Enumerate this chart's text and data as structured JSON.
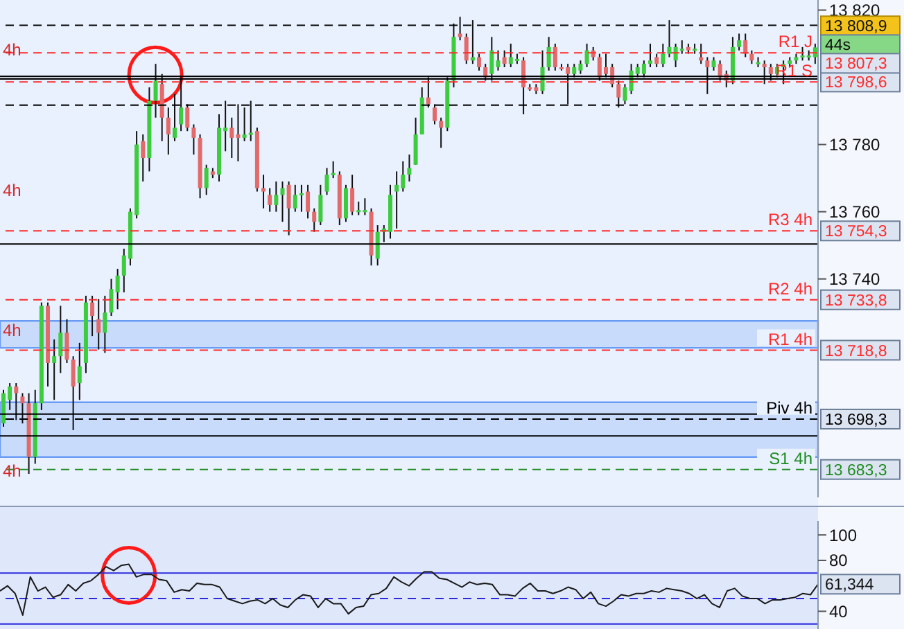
{
  "chart_data": [
    {
      "type": "candlestick",
      "categories": [
        null,
        null,
        null,
        null,
        null,
        null,
        null,
        null,
        null,
        null,
        null,
        null,
        null,
        null,
        null,
        null,
        null,
        null,
        null,
        null,
        null,
        null,
        null,
        null,
        null,
        null,
        null,
        null,
        null,
        null,
        null,
        null,
        null,
        null,
        null,
        null,
        null,
        null,
        null,
        null,
        null,
        null,
        null,
        null,
        null,
        null,
        null,
        null,
        null,
        null,
        null,
        null,
        null,
        null,
        null,
        null,
        null,
        null,
        null,
        null,
        null,
        null,
        null,
        null,
        null,
        null,
        null,
        null,
        null,
        null,
        null,
        null,
        null,
        null,
        null,
        null,
        null,
        null,
        null,
        null,
        null,
        null,
        null,
        null,
        null,
        null,
        null,
        null,
        null,
        null,
        null,
        null,
        null,
        null,
        null,
        null,
        null,
        null,
        null,
        null,
        null,
        null,
        null,
        null,
        null,
        null,
        null,
        null,
        null,
        null,
        null,
        null,
        null,
        null,
        null,
        null,
        null,
        null,
        null,
        null,
        null,
        null,
        null,
        null,
        null,
        null,
        null,
        null,
        null
      ],
      "ohlc": [
        [
          13697,
          13707,
          13696,
          13706
        ],
        [
          13704,
          13709,
          13701,
          13708
        ],
        [
          13708,
          13709,
          13698,
          13706
        ],
        [
          13705,
          13706,
          13697,
          13703
        ],
        [
          13703,
          13706,
          13682,
          13687
        ],
        [
          13687,
          13707,
          13685,
          13703
        ],
        [
          13703,
          13733,
          13701,
          13732
        ],
        [
          13732,
          13733,
          13708,
          13715
        ],
        [
          13715,
          13722,
          13704,
          13717
        ],
        [
          13717,
          13732,
          13712,
          13724
        ],
        [
          13724,
          13728,
          13715,
          13716
        ],
        [
          13716,
          13717,
          13695,
          13708
        ],
        [
          13709,
          13721,
          13704,
          13714
        ],
        [
          13715,
          13735,
          13712,
          13733
        ],
        [
          13733,
          13735,
          13723,
          13729
        ],
        [
          13728,
          13734,
          13719,
          13724
        ],
        [
          13724,
          13735,
          13718,
          13730
        ],
        [
          13730,
          13740,
          13729,
          13737
        ],
        [
          13736,
          13743,
          13731,
          13741
        ],
        [
          13741,
          13749,
          13736,
          13747
        ],
        [
          13746,
          13761,
          13744,
          13760
        ],
        [
          13759,
          13784,
          13758,
          13780
        ],
        [
          13781,
          13783,
          13769,
          13776
        ],
        [
          13776,
          13797,
          13772,
          13793
        ],
        [
          13793,
          13804,
          13788,
          13799
        ],
        [
          13798,
          13801,
          13781,
          13788
        ],
        [
          13788,
          13791,
          13777,
          13783
        ],
        [
          13782,
          13795,
          13781,
          13785
        ],
        [
          13786,
          13800,
          13784,
          13791
        ],
        [
          13791,
          13792,
          13784,
          13785
        ],
        [
          13785,
          13786,
          13777,
          13782
        ],
        [
          13782,
          13783,
          13764,
          13767
        ],
        [
          13767,
          13774,
          13765,
          13773
        ],
        [
          13772,
          13773,
          13770,
          13771
        ],
        [
          13771,
          13789,
          13769,
          13785
        ],
        [
          13784,
          13793,
          13778,
          13785
        ],
        [
          13785,
          13788,
          13776,
          13782
        ],
        [
          13783,
          13792,
          13775,
          13782
        ],
        [
          13782,
          13791,
          13781,
          13783
        ],
        [
          13783,
          13793,
          13781,
          13783.5
        ],
        [
          13784,
          13785,
          13766,
          13767
        ],
        [
          13767,
          13771,
          13761,
          13766
        ],
        [
          13765,
          13767,
          13760,
          13762
        ],
        [
          13762,
          13769,
          13760,
          13765
        ],
        [
          13765,
          13769,
          13757,
          13767
        ],
        [
          13768,
          13769,
          13753,
          13761
        ],
        [
          13761,
          13768,
          13760,
          13765
        ],
        [
          13765,
          13768,
          13760,
          13765.5
        ],
        [
          13766,
          13768,
          13758,
          13760
        ],
        [
          13760,
          13761,
          13754,
          13757
        ],
        [
          13757,
          13768,
          13756,
          13765
        ],
        [
          13766,
          13773,
          13765,
          13771
        ],
        [
          13771,
          13775,
          13770,
          13771.5
        ],
        [
          13771,
          13772,
          13756,
          13758
        ],
        [
          13758,
          13768,
          13757,
          13767
        ],
        [
          13767,
          13771,
          13759,
          13760
        ],
        [
          13760,
          13763,
          13759,
          13760.5
        ],
        [
          13760,
          13764,
          13759,
          13760.5
        ],
        [
          13760,
          13761,
          13744,
          13747
        ],
        [
          13746,
          13756,
          13744,
          13754
        ],
        [
          13754,
          13756,
          13751,
          13755
        ],
        [
          13754,
          13768,
          13752,
          13765
        ],
        [
          13766,
          13772,
          13755,
          13768
        ],
        [
          13767,
          13775,
          13766,
          13771
        ],
        [
          13771,
          13777,
          13769,
          13773
        ],
        [
          13774,
          13788,
          13774,
          13783
        ],
        [
          13783,
          13797,
          13783,
          13794
        ],
        [
          13794,
          13800,
          13791,
          13792
        ],
        [
          13791,
          13792,
          13786,
          13787
        ],
        [
          13787,
          13788,
          13779,
          13785
        ],
        [
          13785,
          13800,
          13784,
          13799
        ],
        [
          13799,
          13816,
          13797,
          13812
        ],
        [
          13813,
          13818,
          13811,
          13812
        ],
        [
          13812,
          13813,
          13804,
          13805
        ],
        [
          13805,
          13817,
          13804,
          13806
        ],
        [
          13806,
          13807,
          13802,
          13803
        ],
        [
          13803,
          13804,
          13799,
          13800
        ],
        [
          13801,
          13812,
          13799,
          13808
        ],
        [
          13803,
          13808,
          13802,
          13805
        ],
        [
          13806,
          13808,
          13803,
          13804
        ],
        [
          13804,
          13810,
          13803,
          13806
        ],
        [
          13805,
          13807,
          13804,
          13805.5
        ],
        [
          13805,
          13806,
          13789,
          13797
        ],
        [
          13797,
          13798,
          13796,
          13796.5
        ],
        [
          13797,
          13798,
          13795,
          13796
        ],
        [
          13796,
          13808,
          13795,
          13803
        ],
        [
          13803,
          13812,
          13802,
          13809
        ],
        [
          13809,
          13810,
          13802,
          13803
        ],
        [
          13803,
          13804,
          13802,
          13802.5
        ],
        [
          13803,
          13804,
          13792,
          13801
        ],
        [
          13801,
          13804,
          13800,
          13803
        ],
        [
          13802,
          13805,
          13801,
          13804
        ],
        [
          13804,
          13810,
          13803,
          13808
        ],
        [
          13808,
          13809,
          13805,
          13806
        ],
        [
          13806,
          13807,
          13799,
          13800
        ],
        [
          13803,
          13807,
          13800,
          13801
        ],
        [
          13803,
          13804,
          13797,
          13798
        ],
        [
          13798,
          13799,
          13791,
          13794
        ],
        [
          13793,
          13798,
          13792,
          13797
        ],
        [
          13796,
          13804,
          13795,
          13802
        ],
        [
          13801,
          13804,
          13800,
          13803
        ],
        [
          13801,
          13805,
          13800,
          13804
        ],
        [
          13804,
          13810,
          13803,
          13805
        ],
        [
          13806,
          13807,
          13803,
          13804
        ],
        [
          13804,
          13810,
          13803,
          13807
        ],
        [
          13807,
          13817,
          13806,
          13809
        ],
        [
          13805,
          13810,
          13803,
          13809
        ],
        [
          13808,
          13811,
          13807,
          13808.5
        ],
        [
          13809,
          13810,
          13807,
          13808
        ],
        [
          13808,
          13810,
          13807,
          13808.5
        ],
        [
          13806,
          13810,
          13804,
          13805
        ],
        [
          13805,
          13806,
          13795,
          13803
        ],
        [
          13803,
          13806,
          13802,
          13805
        ],
        [
          13804,
          13805,
          13799,
          13800
        ],
        [
          13801,
          13802,
          13797,
          13799
        ],
        [
          13799,
          13812,
          13798,
          13809
        ],
        [
          13809,
          13813,
          13808,
          13811
        ],
        [
          13811,
          13813,
          13806,
          13807
        ],
        [
          13807,
          13808,
          13804,
          13805
        ],
        [
          13804,
          13806,
          13803,
          13804.5
        ],
        [
          13804,
          13805,
          13798,
          13803
        ],
        [
          13803,
          13804,
          13799,
          13801
        ],
        [
          13801,
          13804,
          13800,
          13803
        ],
        [
          13803,
          13805,
          13798,
          13804
        ],
        [
          13804,
          13806,
          13803,
          13805
        ],
        [
          13805,
          13807,
          13804,
          13806
        ],
        [
          13806,
          13809,
          13805,
          13806.5
        ],
        [
          13806,
          13808,
          13805,
          13806.5
        ],
        [
          13806,
          13810,
          13804,
          13808.9
        ]
      ],
      "ylim": [
        13675,
        13823
      ],
      "yticks": [
        {
          "value": 13683.3,
          "label": "13 683,3"
        },
        {
          "value": 13698.3,
          "label": "13 698,3"
        },
        {
          "value": 13718.8,
          "label": "13 718,8"
        },
        {
          "value": 13733.8,
          "label": "13 733,8"
        },
        {
          "value": 13740,
          "label": "13 740"
        },
        {
          "value": 13754.3,
          "label": "13 754,3"
        },
        {
          "value": 13760,
          "label": "13 760"
        },
        {
          "value": 13780,
          "label": "13 780"
        },
        {
          "value": 13798.6,
          "label": "13 798,6"
        },
        {
          "value": 13820,
          "label": "13 820"
        }
      ],
      "tick_labels": "y",
      "ref_lines": [
        {
          "axis": "y",
          "value": 13807.3,
          "label": "R1 J",
          "color": "#ff2a2a",
          "line_style": "dashed"
        },
        {
          "axis": "y",
          "value": 13798.6,
          "label": "R1 S",
          "color": "#ff2a2a",
          "line_style": "dashed"
        },
        {
          "axis": "y",
          "value": 13754.3,
          "label": "R3 4h",
          "color": "#ff2a2a",
          "line_style": "dashed"
        },
        {
          "axis": "y",
          "value": 13733.8,
          "label": "R2 4h",
          "color": "#ff2a2a",
          "line_style": "dashed"
        },
        {
          "axis": "y",
          "value": 13718.8,
          "label": "R1 4h",
          "color": "#ff2a2a",
          "line_style": "dashed"
        },
        {
          "axis": "y",
          "value": 13698.3,
          "label": "Piv 4h",
          "color": "#000000",
          "line_style": "dashed"
        },
        {
          "axis": "y",
          "value": 13683.3,
          "label": "S1 4h",
          "color": "#1e8c1e",
          "line_style": "dashed"
        },
        {
          "axis": "y",
          "value": 13815.5,
          "color": "#000000",
          "line_style": "dashed"
        },
        {
          "axis": "y",
          "value": 13791.7,
          "color": "#000000",
          "line_style": "dashed"
        },
        {
          "axis": "y",
          "value": 13800.3,
          "color": "#000000",
          "line_style": "solid"
        },
        {
          "axis": "y",
          "value": 13799.5,
          "color": "#000000",
          "line_style": "solid"
        },
        {
          "axis": "y",
          "value": 13750.4,
          "color": "#000000",
          "line_style": "solid"
        },
        {
          "axis": "y",
          "value": 13699.8,
          "color": "#000000",
          "line_style": "solid"
        },
        {
          "axis": "y",
          "value": 13693.3,
          "color": "#000000",
          "line_style": "solid"
        }
      ],
      "bands": [
        {
          "axis": "y",
          "from": 13719.5,
          "to": 13727.5,
          "color": "#6a9cf5"
        },
        {
          "axis": "y",
          "from": 13687,
          "to": 13703.3,
          "color": "#6a9cf5"
        }
      ],
      "annotations": [
        "13 808,9",
        "44s",
        "13 807,3",
        "4h",
        "4h",
        "4h",
        "4h"
      ]
    },
    {
      "type": "line",
      "categories": [
        null,
        null,
        null,
        null,
        null,
        null,
        null,
        null,
        null,
        null,
        null,
        null,
        null,
        null,
        null,
        null,
        null,
        null,
        null,
        null,
        null,
        null,
        null,
        null,
        null,
        null,
        null,
        null,
        null,
        null,
        null,
        null,
        null,
        null,
        null,
        null,
        null,
        null,
        null,
        null,
        null,
        null,
        null,
        null,
        null,
        null,
        null,
        null,
        null,
        null,
        null,
        null,
        null,
        null,
        null,
        null,
        null,
        null,
        null,
        null,
        null,
        null,
        null,
        null,
        null,
        null,
        null,
        null,
        null,
        null,
        null,
        null,
        null,
        null,
        null,
        null,
        null,
        null,
        null,
        null,
        null,
        null,
        null,
        null,
        null,
        null,
        null,
        null,
        null,
        null,
        null,
        null,
        null,
        null,
        null,
        null,
        null,
        null,
        null,
        null,
        null,
        null,
        null,
        null,
        null,
        null,
        null,
        null,
        null
      ],
      "series": [
        {
          "color": "#1a1a1a",
          "values": [
            56,
            60,
            54,
            37,
            67,
            56,
            59,
            51,
            53,
            61,
            56,
            62,
            64,
            69,
            75,
            72,
            76,
            77,
            67,
            69,
            69,
            65,
            64,
            55,
            57,
            56,
            62,
            61,
            61,
            59,
            50,
            48,
            46,
            48,
            49,
            46,
            50,
            45,
            43,
            49,
            53,
            52,
            43,
            50,
            46,
            46,
            38,
            43,
            44,
            53,
            54,
            58,
            67,
            63,
            60,
            66,
            71,
            71,
            66,
            65,
            62,
            59,
            63,
            61,
            62,
            61,
            53,
            53,
            52,
            58,
            62,
            56,
            56,
            54,
            56,
            59,
            57,
            50,
            55,
            46,
            44,
            48,
            53,
            52,
            54,
            54,
            56,
            55,
            58,
            57,
            56,
            54,
            50,
            53,
            46,
            43,
            56,
            58,
            52,
            50,
            50,
            46,
            49,
            49,
            50,
            51,
            54,
            53,
            61.3
          ]
        }
      ],
      "ylim": [
        25,
        111
      ],
      "yticks": [
        40,
        80,
        100
      ],
      "tick_labels": "y",
      "ref_lines": [
        {
          "axis": "y",
          "value": 70,
          "color": "#2b2bdc",
          "line_style": "solid"
        },
        {
          "axis": "y",
          "value": 50,
          "color": "#2b2bdc",
          "line_style": "dashed"
        },
        {
          "axis": "y",
          "value": 30,
          "color": "#2b2bdc",
          "line_style": "solid"
        }
      ],
      "annotations": [
        "61,344"
      ]
    }
  ]
}
